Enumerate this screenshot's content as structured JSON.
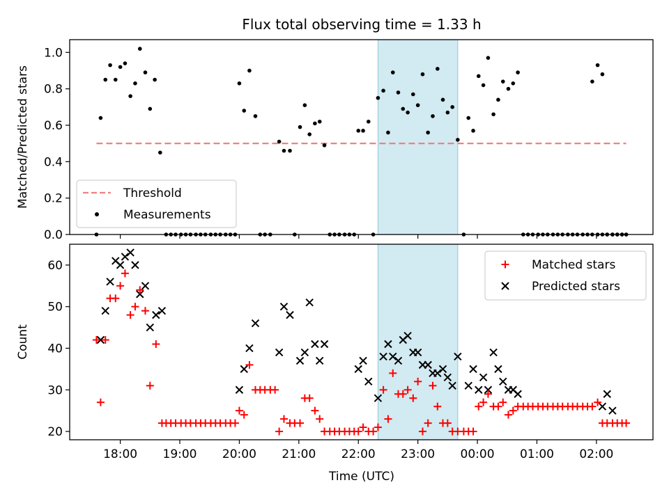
{
  "figure": {
    "title": "Flux total observing time = 1.33 h"
  },
  "colors": {
    "measurements": "#000000",
    "threshold": "#f08080",
    "matched": "#ff0000",
    "predicted": "#000000",
    "highlight": "#add8e6"
  },
  "chart_data": [
    {
      "type": "scatter",
      "title": "Flux total observing time = 1.33 h",
      "ylabel": "Matched/Predicted stars",
      "xlabel": "",
      "x_unit": "hours since 18:00 UTC",
      "xlim": [
        -0.85,
        8.95
      ],
      "ylim": [
        0,
        1.07
      ],
      "yticks": [
        0.0,
        0.2,
        0.4,
        0.6,
        0.8,
        1.0
      ],
      "yticklabels": [
        "0.0",
        "0.2",
        "0.4",
        "0.6",
        "0.8",
        "1.0"
      ],
      "highlight_span": [
        4.33,
        5.67
      ],
      "legend": {
        "placement": "lower-left",
        "entries": [
          "Threshold",
          "Measurements"
        ]
      },
      "threshold": {
        "name": "Threshold",
        "y": 0.5,
        "x_range": [
          -0.4,
          8.5
        ]
      },
      "series": [
        {
          "name": "Measurements",
          "x": [
            -0.4,
            -0.33,
            -0.25,
            -0.17,
            -0.08,
            0.0,
            0.08,
            0.17,
            0.25,
            0.33,
            0.42,
            0.5,
            0.58,
            0.67,
            0.77,
            0.85,
            0.93,
            1.02,
            1.1,
            1.18,
            1.27,
            1.35,
            1.43,
            1.52,
            1.6,
            1.68,
            1.77,
            1.85,
            1.93,
            2.0,
            2.08,
            2.17,
            2.27,
            2.35,
            2.43,
            2.52,
            2.67,
            2.75,
            2.85,
            2.93,
            3.02,
            3.1,
            3.18,
            3.27,
            3.35,
            3.43,
            3.52,
            3.6,
            3.68,
            3.77,
            3.85,
            3.93,
            4.0,
            4.08,
            4.17,
            4.25,
            4.33,
            4.42,
            4.5,
            4.58,
            4.67,
            4.75,
            4.83,
            4.92,
            5.0,
            5.08,
            5.17,
            5.25,
            5.33,
            5.42,
            5.5,
            5.58,
            5.67,
            5.77,
            5.85,
            5.93,
            6.02,
            6.1,
            6.18,
            6.27,
            6.35,
            6.43,
            6.52,
            6.6,
            6.68,
            6.77,
            6.85,
            6.93,
            7.02,
            7.1,
            7.18,
            7.27,
            7.35,
            7.43,
            7.52,
            7.6,
            7.68,
            7.77,
            7.85,
            7.93,
            8.02,
            8.1,
            8.18,
            8.27,
            8.35,
            8.43,
            8.5
          ],
          "y": [
            0.0,
            0.64,
            0.85,
            0.93,
            0.85,
            0.92,
            0.94,
            0.76,
            0.83,
            1.02,
            0.89,
            0.69,
            0.85,
            0.45,
            0.0,
            0.0,
            0.0,
            0.0,
            0.0,
            0.0,
            0.0,
            0.0,
            0.0,
            0.0,
            0.0,
            0.0,
            0.0,
            0.0,
            0.0,
            0.83,
            0.68,
            0.9,
            0.65,
            0.0,
            0.0,
            0.0,
            0.51,
            0.46,
            0.46,
            0.0,
            0.59,
            0.71,
            0.55,
            0.61,
            0.62,
            0.49,
            0.0,
            0.0,
            0.0,
            0.0,
            0.0,
            0.0,
            0.57,
            0.57,
            0.62,
            0.0,
            0.75,
            0.79,
            0.56,
            0.89,
            0.78,
            0.69,
            0.67,
            0.77,
            0.71,
            0.88,
            0.56,
            0.65,
            0.91,
            0.74,
            0.67,
            0.7,
            0.52,
            0.0,
            0.64,
            0.57,
            0.87,
            0.82,
            0.97,
            0.66,
            0.74,
            0.84,
            0.8,
            0.83,
            0.89,
            0.0,
            0.0,
            0.0,
            0.0,
            0.0,
            0.0,
            0.0,
            0.0,
            0.0,
            0.0,
            0.0,
            0.0,
            0.0,
            0.0,
            0.0,
            0.0,
            0.0,
            0.0,
            0.0,
            0.0,
            0.0,
            0.0
          ]
        },
        {
          "name": "Measurements",
          "x": [
            7.93,
            8.02,
            8.1,
            8.18,
            8.27,
            8.35,
            8.43,
            8.5
          ],
          "y": [
            0.84,
            0.93,
            0.88,
            0.0,
            0.0,
            0.0,
            0.0,
            0.0
          ]
        }
      ]
    },
    {
      "type": "scatter",
      "title": "",
      "ylabel": "Count",
      "xlabel": "Time (UTC)",
      "x_unit": "hours since 18:00 UTC",
      "xlim": [
        -0.85,
        8.95
      ],
      "ylim": [
        18,
        65
      ],
      "yticks": [
        20,
        30,
        40,
        50,
        60
      ],
      "yticklabels": [
        "20",
        "30",
        "40",
        "50",
        "60"
      ],
      "xticks": [
        0,
        1,
        2,
        3,
        4,
        5,
        6,
        7,
        8
      ],
      "xticklabels": [
        "18:00",
        "19:00",
        "20:00",
        "21:00",
        "22:00",
        "23:00",
        "00:00",
        "01:00",
        "02:00"
      ],
      "highlight_span": [
        4.33,
        5.67
      ],
      "legend": {
        "placement": "top-right",
        "entries": [
          "Matched stars",
          "Predicted stars"
        ]
      },
      "series": [
        {
          "name": "Matched stars",
          "x": [
            -0.4,
            -0.33,
            -0.25,
            -0.17,
            -0.08,
            0.0,
            0.08,
            0.17,
            0.25,
            0.33,
            0.42,
            0.5,
            0.6,
            0.7,
            0.77,
            0.85,
            0.93,
            1.02,
            1.1,
            1.18,
            1.27,
            1.35,
            1.43,
            1.52,
            1.6,
            1.68,
            1.77,
            1.85,
            1.93,
            2.0,
            2.08,
            2.17,
            2.27,
            2.35,
            2.43,
            2.52,
            2.6,
            2.67,
            2.75,
            2.85,
            2.93,
            3.02,
            3.1,
            3.18,
            3.27,
            3.35,
            3.43,
            3.52,
            3.6,
            3.68,
            3.77,
            3.85,
            3.93,
            4.0,
            4.08,
            4.17,
            4.25,
            4.33,
            4.42,
            4.5,
            4.58,
            4.67,
            4.75,
            4.83,
            4.92,
            5.0,
            5.08,
            5.17,
            5.25,
            5.33,
            5.42,
            5.5,
            5.58,
            5.67,
            5.77,
            5.85,
            5.93,
            6.02,
            6.1,
            6.18,
            6.27,
            6.35,
            6.43,
            6.52,
            6.6,
            6.68,
            6.77,
            6.85,
            6.93,
            7.02,
            7.1,
            7.18,
            7.27,
            7.35,
            7.43,
            7.52,
            7.6,
            7.68,
            7.77,
            7.85,
            7.93,
            8.02,
            8.1,
            8.18,
            8.27,
            8.35,
            8.43,
            8.5
          ],
          "y": [
            42,
            27,
            42,
            52,
            52,
            55,
            58,
            48,
            50,
            54,
            49,
            31,
            41,
            22,
            22,
            22,
            22,
            22,
            22,
            22,
            22,
            22,
            22,
            22,
            22,
            22,
            22,
            22,
            22,
            25,
            24,
            36,
            30,
            30,
            30,
            30,
            30,
            20,
            23,
            22,
            22,
            22,
            28,
            28,
            25,
            23,
            20,
            20,
            20,
            20,
            20,
            20,
            20,
            20,
            21,
            20,
            20,
            21,
            30,
            23,
            34,
            29,
            29,
            30,
            28,
            32,
            20,
            22,
            31,
            26,
            22,
            22,
            20,
            20,
            20,
            20,
            20,
            26,
            27,
            29,
            26,
            26,
            27,
            24,
            25,
            26,
            26,
            26,
            26,
            26,
            26,
            26,
            26,
            26,
            26,
            26,
            26,
            26,
            26,
            26,
            26,
            27,
            22,
            22,
            22,
            22,
            22,
            22
          ]
        },
        {
          "name": "Predicted stars",
          "x": [
            -0.33,
            -0.25,
            -0.17,
            -0.08,
            0.0,
            0.08,
            0.17,
            0.25,
            0.33,
            0.42,
            0.5,
            0.6,
            0.7,
            2.0,
            2.08,
            2.17,
            2.27,
            2.67,
            2.75,
            2.85,
            3.02,
            3.1,
            3.18,
            3.27,
            3.35,
            3.43,
            4.0,
            4.08,
            4.17,
            4.33,
            4.42,
            4.5,
            4.58,
            4.67,
            4.75,
            4.83,
            4.92,
            5.0,
            5.08,
            5.17,
            5.25,
            5.33,
            5.42,
            5.5,
            5.58,
            5.67,
            5.85,
            5.93,
            6.02,
            6.1,
            6.18,
            6.27,
            6.35,
            6.43,
            6.52,
            6.6,
            6.68,
            8.1,
            8.18,
            8.27
          ],
          "y": [
            42,
            49,
            56,
            61,
            60,
            62,
            63,
            60,
            53,
            55,
            45,
            48,
            49,
            30,
            35,
            40,
            46,
            39,
            50,
            48,
            37,
            39,
            51,
            41,
            37,
            41,
            35,
            37,
            32,
            28,
            38,
            41,
            38,
            37,
            42,
            43,
            39,
            39,
            36,
            36,
            34,
            34,
            35,
            33,
            31,
            38,
            31,
            35,
            30,
            33,
            30,
            39,
            35,
            32,
            30,
            30,
            29,
            26,
            29,
            25
          ]
        }
      ]
    }
  ]
}
